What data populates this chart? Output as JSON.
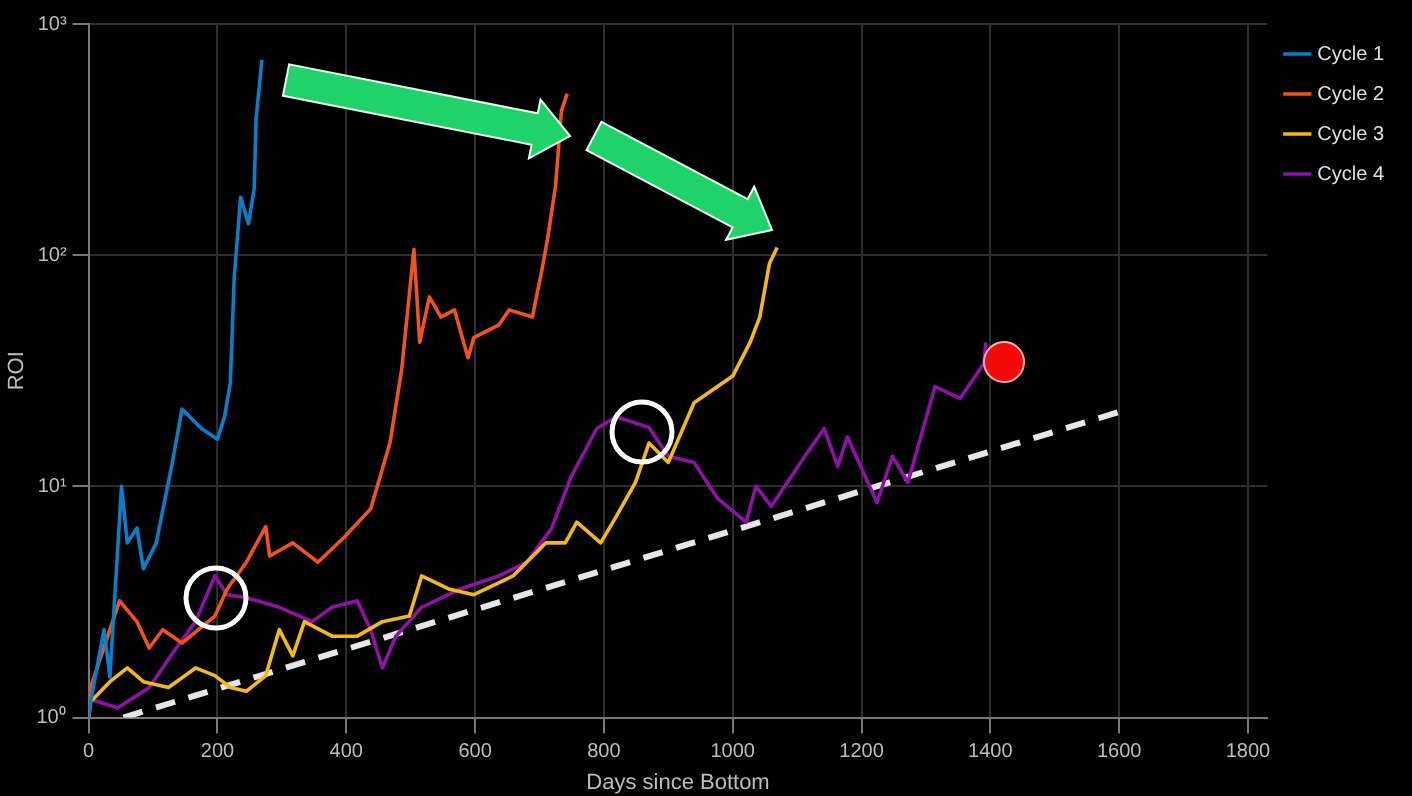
{
  "chart_data": {
    "type": "line",
    "xlabel": "Days since Bottom",
    "ylabel": "ROI",
    "xlim": [
      0,
      1830
    ],
    "xticks": [
      0,
      200,
      400,
      600,
      800,
      1000,
      1200,
      1400,
      1600,
      1800
    ],
    "ylim": [
      1,
      1000
    ],
    "yticks": [
      {
        "value": 1,
        "label": "10⁰"
      },
      {
        "value": 10,
        "label": "10¹"
      },
      {
        "value": 100,
        "label": "10²"
      },
      {
        "value": 1000,
        "label": "10³"
      }
    ],
    "log": "y",
    "grid": true,
    "legend": "top right",
    "marker": "none",
    "series": [
      {
        "name": "Cycle 1",
        "color": "#0a7fc8",
        "x": [
          0,
          3,
          24,
          33,
          51,
          60,
          75,
          85,
          105,
          130,
          145,
          175,
          200,
          211,
          220,
          226,
          236,
          248,
          257,
          260,
          269
        ],
        "values": [
          1,
          1.17,
          2.4,
          1.5,
          10,
          5.7,
          6.6,
          4.4,
          5.7,
          12.7,
          21.6,
          17.8,
          16,
          20,
          28,
          80,
          178,
          137,
          193,
          390,
          700
        ]
      },
      {
        "name": "Cycle 2",
        "color": "#f0541c",
        "x": [
          0,
          3,
          48,
          75,
          94,
          115,
          145,
          196,
          215,
          245,
          275,
          281,
          317,
          356,
          396,
          438,
          468,
          486,
          505,
          514,
          529,
          547,
          568,
          589,
          598,
          637,
          653,
          689,
          704,
          713,
          725,
          734,
          743
        ],
        "values": [
          1.1,
          1.35,
          3.2,
          2.6,
          2,
          2.4,
          2.1,
          2.75,
          3.6,
          4.7,
          6.7,
          5,
          5.7,
          4.7,
          6,
          8,
          15.5,
          32,
          106,
          42,
          66,
          54,
          58,
          36,
          44,
          50,
          58,
          54,
          87,
          120,
          200,
          420,
          500
        ]
      },
      {
        "name": "Cycle 3",
        "color": "#f2b81c",
        "x": [
          0,
          3,
          33,
          60,
          85,
          124,
          166,
          196,
          220,
          245,
          275,
          296,
          317,
          335,
          378,
          417,
          456,
          498,
          517,
          559,
          598,
          659,
          710,
          740,
          758,
          795,
          819,
          849,
          870,
          900,
          940,
          1000,
          1027,
          1042,
          1057,
          1069
        ],
        "values": [
          1,
          1.17,
          1.43,
          1.64,
          1.43,
          1.35,
          1.64,
          1.52,
          1.35,
          1.3,
          1.52,
          2.4,
          1.85,
          2.6,
          2.25,
          2.25,
          2.6,
          2.75,
          4.1,
          3.6,
          3.4,
          4.1,
          5.7,
          5.7,
          7,
          5.7,
          7.4,
          10.4,
          15.4,
          12.7,
          23,
          30,
          42,
          54,
          92,
          108
        ]
      },
      {
        "name": "Cycle 4",
        "color": "#8e12a6",
        "x": [
          0,
          3,
          45,
          94,
          136,
          166,
          196,
          215,
          245,
          296,
          347,
          378,
          417,
          438,
          456,
          477,
          517,
          577,
          637,
          680,
          719,
          749,
          789,
          819,
          870,
          900,
          940,
          976,
          1021,
          1036,
          1060,
          1112,
          1142,
          1163,
          1178,
          1224,
          1248,
          1272,
          1314,
          1353,
          1390,
          1393
        ],
        "values": [
          1,
          1.2,
          1.1,
          1.35,
          2,
          2.6,
          4.1,
          3.4,
          3.3,
          3,
          2.6,
          3,
          3.2,
          2.4,
          1.64,
          2.25,
          3,
          3.6,
          4.1,
          4.7,
          6.6,
          11,
          17.8,
          20,
          18,
          13.5,
          12.7,
          8.9,
          7,
          10,
          8.2,
          13.5,
          17.8,
          12.2,
          16.4,
          8.5,
          13.5,
          10.4,
          27,
          24,
          34,
          42
        ]
      },
      {
        "type": "line",
        "color": "#e6e6e6",
        "line_style": "dashed",
        "x": [
          54,
          1600
        ],
        "values": [
          1,
          21
        ]
      }
    ]
  }
}
